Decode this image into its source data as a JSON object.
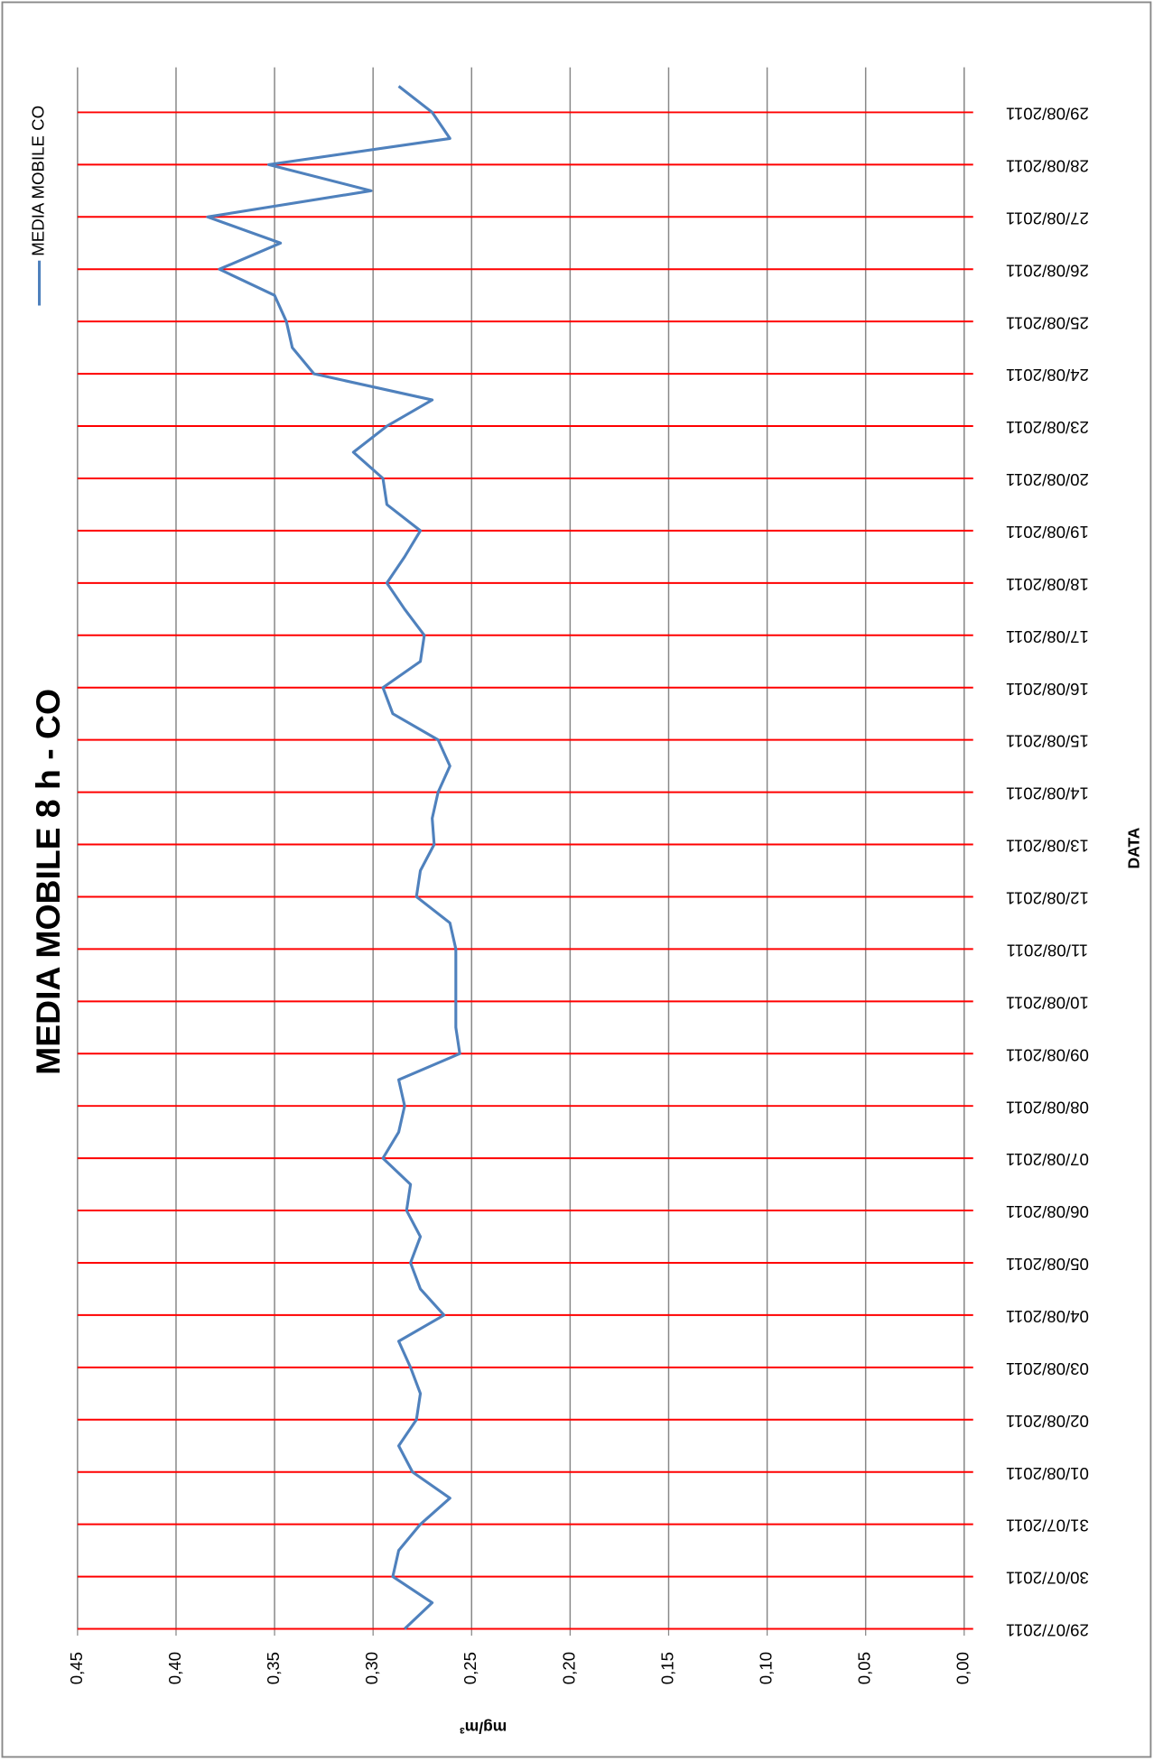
{
  "chart_data": {
    "type": "line",
    "title": "MEDIA MOBILE 8 h - CO",
    "y_label": "mg/m³",
    "x_label": "DATA",
    "categories": [
      "29/07/2011",
      null,
      "30/07/2011",
      null,
      "31/07/2011",
      null,
      "01/08/2011",
      null,
      "02/08/2011",
      null,
      "03/08/2011",
      null,
      "04/08/2011",
      null,
      "05/08/2011",
      null,
      "06/08/2011",
      null,
      "07/08/2011",
      null,
      "08/08/2011",
      null,
      "09/08/2011",
      null,
      "10/08/2011",
      null,
      "11/08/2011",
      null,
      "12/08/2011",
      null,
      "13/08/2011",
      null,
      "14/08/2011",
      null,
      "15/08/2011",
      null,
      "16/08/2011",
      null,
      "17/08/2011",
      null,
      "18/08/2011",
      null,
      "19/08/2011",
      null,
      "20/08/2011",
      null,
      "23/08/2011",
      null,
      "24/08/2011",
      null,
      "25/08/2011",
      null,
      "26/08/2011",
      null,
      "27/08/2011",
      null,
      "28/08/2011",
      null,
      "29/08/2011",
      null
    ],
    "series": [
      {
        "name": "MEDIA MOBILE CO",
        "color": "#4f81bd",
        "values": [
          0.284,
          0.27,
          0.29,
          0.287,
          0.276,
          0.261,
          0.28,
          0.287,
          0.278,
          0.276,
          0.281,
          0.287,
          0.264,
          0.276,
          0.281,
          0.276,
          0.283,
          0.281,
          0.295,
          0.287,
          0.284,
          0.287,
          0.256,
          0.258,
          0.258,
          0.258,
          0.258,
          0.261,
          0.278,
          0.276,
          0.269,
          0.27,
          0.267,
          0.261,
          0.267,
          0.29,
          0.295,
          0.276,
          0.274,
          0.284,
          0.293,
          0.284,
          0.276,
          0.293,
          0.295,
          0.31,
          0.293,
          0.27,
          0.33,
          0.341,
          0.344,
          0.35,
          0.378,
          0.347,
          0.384,
          0.301,
          0.353,
          0.261,
          0.27,
          0.287
        ]
      }
    ],
    "ylim": [
      0,
      0.45
    ],
    "yticks": [
      {
        "value": 0,
        "label": "0,00"
      },
      {
        "value": 0.05,
        "label": "0,05"
      },
      {
        "value": 0.1,
        "label": "0,10"
      },
      {
        "value": 0.15,
        "label": "0,15"
      },
      {
        "value": 0.2,
        "label": "0,20"
      },
      {
        "value": 0.25,
        "label": "0,25"
      },
      {
        "value": 0.3,
        "label": "0,30"
      },
      {
        "value": 0.35,
        "label": "0,35"
      },
      {
        "value": 0.4,
        "label": "0,40"
      },
      {
        "value": 0.45,
        "label": "0,45"
      }
    ],
    "grid": true,
    "category_grid_color": "#ff0000"
  }
}
